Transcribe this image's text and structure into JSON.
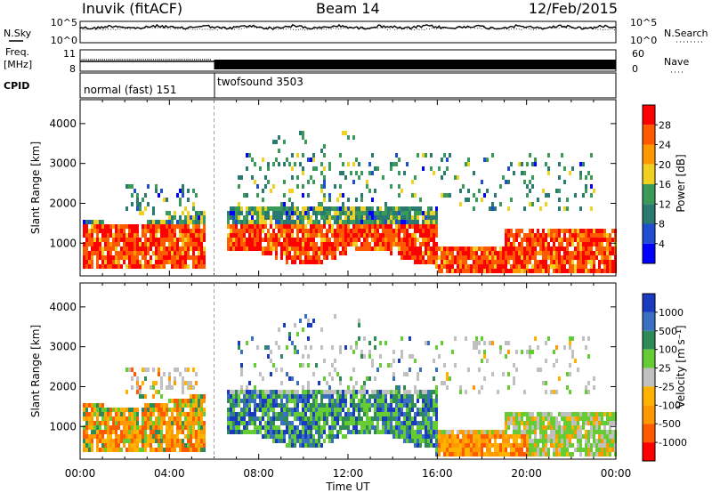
{
  "header": {
    "station": "Inuvik (fitACF)",
    "beam": "Beam 14",
    "date": "12/Feb/2015"
  },
  "noise_panel": {
    "left_label": "N.Sky",
    "right_label": "N.Search",
    "left_ticks": [
      "10^5",
      "10^0"
    ],
    "right_ticks": [
      "10^5",
      "10^0"
    ]
  },
  "freq_panel": {
    "left_label_line1": "Freq.",
    "left_label_line2": "[MHz]",
    "left_ticks": [
      "11",
      "8"
    ],
    "right_label": "Nave",
    "right_ticks": [
      "60",
      "0"
    ]
  },
  "cpid_panel": {
    "label": "CPID",
    "modes": [
      {
        "name": "normal (fast) 151",
        "start": "00:00"
      },
      {
        "name": "twofsound 3503",
        "start": "06:00"
      }
    ]
  },
  "colors": {
    "power_scale": [
      "#0000ff",
      "#1f4fd0",
      "#2a7a70",
      "#3a9a5a",
      "#f0d020",
      "#ff9900",
      "#ff5a00",
      "#ff0000"
    ],
    "velocity_scale": [
      "#ff0000",
      "#ff5a00",
      "#ff9900",
      "#ffb300",
      "#c0c0c0",
      "#66cc33",
      "#2e8b57",
      "#3a70c0",
      "#1a3ac0"
    ]
  },
  "chart_data": [
    {
      "type": "heatmap",
      "panel": "power",
      "xlabel": "",
      "ylabel": "Slant Range [km]",
      "yticks": [
        1000,
        2000,
        3000,
        4000
      ],
      "ylim": [
        180,
        4600
      ],
      "xlim": [
        0,
        24
      ],
      "colorbar": {
        "label": "Power [dB]",
        "ticks": [
          4,
          8,
          12,
          16,
          20,
          24,
          28
        ]
      },
      "regions": [
        {
          "t0": 0.1,
          "t1": 5.6,
          "r0": 400,
          "r1": 1800,
          "level": "high"
        },
        {
          "t0": 6.5,
          "t1": 16.0,
          "r0": 700,
          "r1": 2000,
          "level": "high"
        },
        {
          "t0": 15.8,
          "t1": 24,
          "r0": 300,
          "r1": 1500,
          "level": "high"
        },
        {
          "t0": 7.0,
          "t1": 23.5,
          "r0": 1800,
          "r1": 3300,
          "level": "low"
        }
      ]
    },
    {
      "type": "heatmap",
      "panel": "velocity",
      "xlabel": "Time UT",
      "ylabel": "Slant Range [km]",
      "yticks": [
        1000,
        2000,
        3000,
        4000
      ],
      "ylim": [
        180,
        4600
      ],
      "xlim": [
        0,
        24
      ],
      "xticks": [
        "00:00",
        "04:00",
        "08:00",
        "12:00",
        "16:00",
        "20:00",
        "00:00"
      ],
      "colorbar": {
        "label": "Velocity [m s⁻¹]",
        "ticks": [
          1000,
          500,
          100,
          25,
          -25,
          -100,
          -500,
          -1000
        ]
      },
      "regions": [
        {
          "t0": 0.1,
          "t1": 5.6,
          "r0": 400,
          "r1": 1800,
          "dominant": "toward (orange)"
        },
        {
          "t0": 6.5,
          "t1": 16.0,
          "r0": 700,
          "r1": 2000,
          "dominant": "away (blue/green)"
        },
        {
          "t0": 15.8,
          "t1": 20.0,
          "r0": 300,
          "r1": 900,
          "dominant": "toward (orange)"
        },
        {
          "t0": 20.0,
          "t1": 24,
          "r0": 400,
          "r1": 1400,
          "dominant": "near zero (green/grey)"
        }
      ]
    }
  ]
}
